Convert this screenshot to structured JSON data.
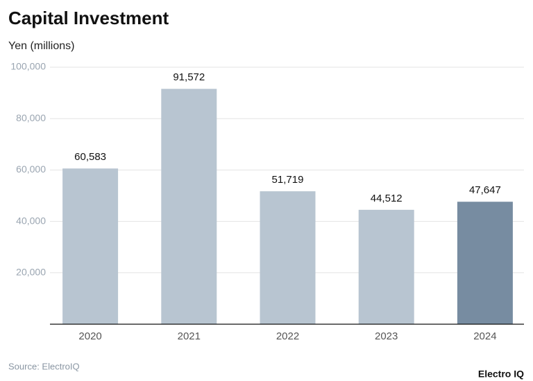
{
  "chart_data": {
    "type": "bar",
    "title": "Capital Investment",
    "subtitle": "Yen (millions)",
    "categories": [
      "2020",
      "2021",
      "2022",
      "2023",
      "2024"
    ],
    "values": [
      60583,
      91572,
      51719,
      44512,
      47647
    ],
    "value_labels": [
      "60,583",
      "91,572",
      "51,719",
      "44,512",
      "47,647"
    ],
    "colors": [
      "#b8c5d1",
      "#b8c5d1",
      "#b8c5d1",
      "#b8c5d1",
      "#778ca1"
    ],
    "ylim": [
      0,
      100000
    ],
    "yticks": [
      {
        "value": 20000,
        "label": "20,000"
      },
      {
        "value": 40000,
        "label": "40,000"
      },
      {
        "value": 60000,
        "label": "60,000"
      },
      {
        "value": 80000,
        "label": "80,000"
      },
      {
        "value": 100000,
        "label": "100,000"
      }
    ],
    "grid": true,
    "source": "Source: ElectroIQ",
    "brand": "Electro IQ"
  }
}
